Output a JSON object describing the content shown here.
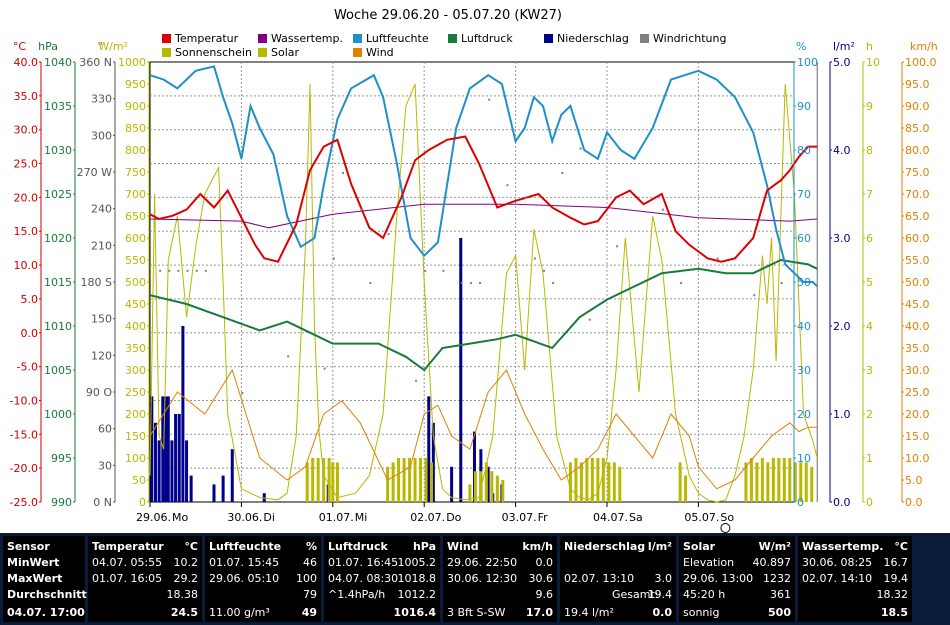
{
  "colors": {
    "temperature": "#dd0000",
    "water_temp": "#800080",
    "humidity": "#1e90c8",
    "pressure": "#1a7a3a",
    "rain": "#00008b",
    "wind_dir": "#808080",
    "sunshine": "#b8b800",
    "solar": "#b8b800",
    "wind": "#e08000",
    "axis_temp": "#cc0000",
    "axis_hpa": "#1a7a3a",
    "axis_hum": "#1e90c8",
    "axis_rain": "#00008b",
    "axis_sun": "#b8b800",
    "axis_wind": "#e08000",
    "grid": "#999999"
  },
  "chart_data": {
    "type": "line",
    "title": "Woche 29.06.20 - 05.07.20 (KW27)",
    "x_range": [
      0,
      7
    ],
    "x_ticks": [
      "29.06.",
      "30.06.",
      "01.07.",
      "02.07.",
      "03.07.",
      "04.07.",
      "05.07."
    ],
    "x_weekdays": [
      "Mo",
      "Di",
      "Mi",
      "Do",
      "Fr",
      "Sa",
      "So"
    ],
    "legend": [
      {
        "label": "Temperatur",
        "color": "#dd0000"
      },
      {
        "label": "Wassertemp.",
        "color": "#800080"
      },
      {
        "label": "Luftfeuchte",
        "color": "#1e90c8"
      },
      {
        "label": "Luftdruck",
        "color": "#1a7a3a"
      },
      {
        "label": "Niederschlag",
        "color": "#00008b"
      },
      {
        "label": "Windrichtung",
        "color": "#808080"
      },
      {
        "label": "Sonnenschein",
        "color": "#b8b800"
      },
      {
        "label": "Solar",
        "color": "#b8b800"
      },
      {
        "label": "Wind",
        "color": "#e08000"
      }
    ],
    "axes": [
      {
        "unit": "°C",
        "range": [
          -25,
          40
        ],
        "ticks": [
          "40.0",
          "35.0",
          "30.0",
          "25.0",
          "20.0",
          "15.0",
          "10.0",
          "5.0",
          "0.0",
          "-5.0",
          "-10.0",
          "-15.0",
          "-20.0",
          "-25.0"
        ],
        "color": "#cc0000"
      },
      {
        "unit": "hPa",
        "range": [
          990,
          1040
        ],
        "ticks": [
          "1040",
          "1035",
          "1030",
          "1025",
          "1020",
          "1015",
          "1010",
          "1005",
          "1000",
          "995",
          "990"
        ],
        "color": "#1a7a3a"
      },
      {
        "unit": "°",
        "range": [
          0,
          360
        ],
        "ticks": [
          "360 N",
          "330",
          "300",
          "270 W",
          "240",
          "210",
          "180 S",
          "150",
          "120",
          "90 O",
          "60",
          "30",
          "0 N"
        ],
        "color": "#555555"
      },
      {
        "unit": "W/m²",
        "range": [
          0,
          1000
        ],
        "ticks": [
          "1000",
          "950",
          "900",
          "850",
          "800",
          "750",
          "700",
          "650",
          "600",
          "550",
          "500",
          "450",
          "400",
          "350",
          "300",
          "250",
          "200",
          "150",
          "100",
          "50",
          "0"
        ],
        "color": "#b8b800"
      },
      {
        "unit": "%",
        "range": [
          0,
          100
        ],
        "ticks": [
          "100",
          "90",
          "80",
          "70",
          "60",
          "50",
          "40",
          "30",
          "20",
          "10",
          "0"
        ],
        "color": "#1e90c8"
      },
      {
        "unit": "l/m²",
        "range": [
          0,
          5
        ],
        "ticks": [
          "5.0",
          "4.0",
          "3.0",
          "2.0",
          "1.0",
          "0.0"
        ],
        "color": "#00008b"
      },
      {
        "unit": "h",
        "range": [
          0,
          10
        ],
        "ticks": [
          "10",
          "9",
          "8",
          "7",
          "6",
          "5",
          "4",
          "3",
          "2",
          "1",
          "0"
        ],
        "color": "#b8b800"
      },
      {
        "unit": "km/h",
        "range": [
          0,
          100
        ],
        "ticks": [
          "100.0",
          "95.0",
          "90.0",
          "85.0",
          "80.0",
          "75.0",
          "70.0",
          "65.0",
          "60.0",
          "55.0",
          "50.0",
          "45.0",
          "40.0",
          "35.0",
          "30.0",
          "25.0",
          "20.0",
          "15.0",
          "10.0",
          "5.0",
          "0.0"
        ],
        "color": "#e08000"
      }
    ],
    "series": [
      {
        "name": "Temperatur",
        "unit": "°C",
        "axis": 0,
        "x": [
          0,
          0.1,
          0.25,
          0.4,
          0.55,
          0.7,
          0.85,
          1.0,
          1.15,
          1.25,
          1.4,
          1.6,
          1.75,
          1.9,
          2.05,
          2.2,
          2.4,
          2.55,
          2.75,
          2.9,
          3.05,
          3.25,
          3.45,
          3.6,
          3.8,
          4.0,
          4.25,
          4.4,
          4.6,
          4.75,
          4.9,
          5.1,
          5.25,
          5.4,
          5.6,
          5.75,
          5.9,
          6.0,
          6.1,
          6.25,
          6.4,
          6.5,
          6.6,
          6.75,
          6.85,
          6.9,
          7.0,
          7.1,
          7.2,
          7.25,
          7.3
        ],
        "y": [
          17.5,
          16.8,
          17.3,
          18.2,
          20.5,
          18.5,
          21.0,
          17.0,
          13.0,
          11.0,
          10.5,
          16.0,
          24.0,
          27.5,
          28.5,
          22.0,
          15.5,
          14.0,
          20.0,
          25.5,
          27.0,
          28.5,
          29.0,
          25.0,
          18.5,
          19.5,
          20.5,
          18.5,
          17.0,
          16.0,
          16.5,
          20.0,
          21.0,
          19.0,
          20.5,
          15.0,
          13.0,
          12.0,
          11.0,
          10.5,
          11.0,
          12.5,
          14.0,
          21.0,
          22.0,
          22.5,
          24.0,
          26.0,
          27.5,
          27.5,
          27.5
        ]
      },
      {
        "name": "Wassertemp.",
        "unit": "°C",
        "axis": 0,
        "x": [
          0,
          1,
          1.3,
          2,
          3,
          4,
          5,
          6,
          7,
          7.3
        ],
        "y": [
          16.8,
          16.5,
          15.5,
          17.5,
          19.0,
          19.0,
          18.5,
          17.0,
          16.5,
          16.8
        ]
      },
      {
        "name": "Luftfeuchte",
        "unit": "%",
        "axis": 4,
        "x": [
          0,
          0.15,
          0.3,
          0.5,
          0.7,
          0.8,
          0.9,
          1.0,
          1.1,
          1.2,
          1.35,
          1.5,
          1.65,
          1.8,
          1.9,
          2.05,
          2.2,
          2.45,
          2.55,
          2.7,
          2.85,
          3.0,
          3.15,
          3.35,
          3.5,
          3.7,
          3.85,
          4.0,
          4.1,
          4.2,
          4.3,
          4.35,
          4.4,
          4.5,
          4.6,
          4.75,
          4.9,
          5.0,
          5.15,
          5.3,
          5.5,
          5.7,
          5.85,
          6.0,
          6.2,
          6.4,
          6.6,
          6.75,
          6.85,
          6.95,
          7.05,
          7.15,
          7.25,
          7.3
        ],
        "y": [
          97,
          96,
          94,
          98,
          99,
          92,
          86,
          78,
          90,
          85,
          79,
          65,
          58,
          60,
          72,
          87,
          94,
          97,
          92,
          77,
          60,
          56,
          59,
          85,
          94,
          97,
          95,
          82,
          85,
          92,
          90,
          86,
          82,
          88,
          90,
          80,
          78,
          84,
          80,
          78,
          85,
          96,
          97,
          98,
          96,
          92,
          84,
          72,
          62,
          54,
          52,
          50,
          50,
          49
        ]
      },
      {
        "name": "Luftdruck",
        "unit": "hPa",
        "axis": 1,
        "x": [
          0,
          0.4,
          0.8,
          1.2,
          1.5,
          1.8,
          2.0,
          2.2,
          2.5,
          2.8,
          3.0,
          3.2,
          3.5,
          3.8,
          4.0,
          4.4,
          4.7,
          5.0,
          5.3,
          5.6,
          6.0,
          6.3,
          6.6,
          6.9,
          7.2,
          7.3
        ],
        "y": [
          1013.5,
          1012.5,
          1011,
          1009.5,
          1010.5,
          1009,
          1008,
          1008,
          1008,
          1006.5,
          1005,
          1007.5,
          1008,
          1008.5,
          1009,
          1007.5,
          1011,
          1013,
          1014.5,
          1016,
          1016.5,
          1016,
          1016,
          1017.5,
          1017,
          1016.5
        ]
      },
      {
        "name": "Solar",
        "unit": "W/m²",
        "axis": 3,
        "x": [
          0,
          0.05,
          0.1,
          0.15,
          0.2,
          0.3,
          0.4,
          0.5,
          0.6,
          0.75,
          0.8,
          0.85,
          1.0,
          1.2,
          1.4,
          1.5,
          1.6,
          1.7,
          1.75,
          1.8,
          1.85,
          1.9,
          2.05,
          2.25,
          2.4,
          2.55,
          2.7,
          2.8,
          2.9,
          3.0,
          3.1,
          3.2,
          3.3,
          3.45,
          3.6,
          3.75,
          3.9,
          4.0,
          4.1,
          4.2,
          4.3,
          4.45,
          4.6,
          4.7,
          4.8,
          4.9,
          5.0,
          5.1,
          5.2,
          5.35,
          5.5,
          5.6,
          5.75,
          5.9,
          6.0,
          6.1,
          6.2,
          6.3,
          6.4,
          6.5,
          6.6,
          6.7,
          6.75,
          6.8,
          6.85,
          6.95,
          7.05,
          7.15,
          7.25,
          7.3
        ],
        "y": [
          60,
          700,
          150,
          120,
          550,
          650,
          420,
          580,
          700,
          760,
          500,
          200,
          30,
          10,
          5,
          20,
          150,
          580,
          950,
          400,
          160,
          60,
          10,
          20,
          60,
          200,
          650,
          900,
          950,
          500,
          150,
          30,
          10,
          5,
          10,
          150,
          520,
          560,
          300,
          620,
          520,
          150,
          30,
          10,
          5,
          20,
          100,
          300,
          600,
          250,
          650,
          550,
          200,
          60,
          20,
          5,
          0,
          5,
          60,
          150,
          300,
          560,
          450,
          600,
          320,
          950,
          700,
          200,
          140,
          100
        ]
      },
      {
        "name": "Wind",
        "unit": "km/h",
        "axis": 7,
        "x": [
          0,
          0.3,
          0.6,
          0.9,
          1.2,
          1.5,
          1.7,
          1.9,
          2.1,
          2.3,
          2.6,
          2.85,
          3.0,
          3.15,
          3.3,
          3.5,
          3.7,
          3.9,
          4.1,
          4.3,
          4.5,
          4.7,
          4.9,
          5.1,
          5.3,
          5.5,
          5.7,
          5.9,
          6.0,
          6.2,
          6.4,
          6.6,
          6.8,
          7.0,
          7.1,
          7.2,
          7.3
        ],
        "y": [
          15,
          25,
          20,
          30,
          10,
          5,
          8,
          20,
          23,
          18,
          5,
          8,
          20,
          22,
          15,
          12,
          25,
          30,
          20,
          12,
          5,
          8,
          12,
          20,
          15,
          10,
          20,
          15,
          8,
          3,
          5,
          10,
          15,
          18,
          16,
          17,
          17
        ]
      },
      {
        "name": "Niederschlag",
        "unit": "l/m²",
        "axis": 5,
        "type": "bar",
        "x": [
          0.02,
          0.06,
          0.1,
          0.14,
          0.17,
          0.2,
          0.24,
          0.28,
          0.32,
          0.36,
          0.4,
          0.45,
          0.7,
          0.8,
          0.9,
          1.25,
          1.95,
          3.05,
          3.1,
          3.3,
          3.4,
          3.55,
          3.62,
          3.7,
          3.75,
          3.85
        ],
        "y": [
          1.2,
          0.9,
          0.7,
          1.2,
          1.2,
          1.2,
          0.7,
          1.0,
          1.0,
          2.0,
          0.7,
          0.3,
          0.2,
          0.3,
          0.6,
          0.1,
          0.2,
          1.2,
          0.9,
          0.4,
          3.0,
          0.8,
          0.6,
          0.4,
          0.1,
          0.2
        ]
      },
      {
        "name": "Sonnenschein",
        "unit": "h",
        "axis": 6,
        "type": "bar",
        "x": [
          1.72,
          1.78,
          1.84,
          1.9,
          1.96,
          2.0,
          2.05,
          2.6,
          2.66,
          2.72,
          2.78,
          2.84,
          2.9,
          2.96,
          3.02,
          3.08,
          3.5,
          3.56,
          3.62,
          3.68,
          3.74,
          3.8,
          3.86,
          4.6,
          4.66,
          4.72,
          4.78,
          4.84,
          4.9,
          4.96,
          5.02,
          5.08,
          5.14,
          5.8,
          5.86,
          6.52,
          6.58,
          6.64,
          6.7,
          6.76,
          6.82,
          6.88,
          6.94,
          7.0,
          7.06,
          7.12,
          7.18,
          7.24
        ],
        "y": [
          0.9,
          1.0,
          1.0,
          1.0,
          1.0,
          0.9,
          0.9,
          0.8,
          0.9,
          1.0,
          1.0,
          1.0,
          1.0,
          1.0,
          1.0,
          0.9,
          0.4,
          0.7,
          0.7,
          0.9,
          0.7,
          0.6,
          0.5,
          0.9,
          1.0,
          0.9,
          1.0,
          1.0,
          1.0,
          1.0,
          0.9,
          0.9,
          0.8,
          0.9,
          0.6,
          0.9,
          1.0,
          0.9,
          1.0,
          0.9,
          1.0,
          1.0,
          1.0,
          1.0,
          0.9,
          0.9,
          0.9,
          0.8
        ]
      },
      {
        "name": "Windrichtung",
        "unit": "°",
        "axis": 2,
        "type": "scatter",
        "x": [
          0.1,
          0.2,
          0.3,
          0.4,
          0.5,
          0.6,
          1.0,
          1.5,
          1.9,
          2.0,
          2.1,
          2.3,
          2.4,
          2.6,
          2.9,
          3.0,
          3.2,
          3.4,
          3.5,
          3.6,
          3.7,
          3.9,
          4.1,
          4.2,
          4.3,
          4.4,
          4.5,
          4.7,
          4.8,
          5.1,
          5.6,
          5.8,
          6.2,
          6.6,
          6.9
        ],
        "y": [
          190,
          190,
          190,
          190,
          190,
          190,
          90,
          120,
          110,
          200,
          270,
          240,
          180,
          220,
          100,
          190,
          190,
          180,
          180,
          180,
          330,
          260,
          250,
          200,
          190,
          180,
          270,
          290,
          150,
          210,
          240,
          180,
          200,
          170,
          180
        ]
      }
    ]
  },
  "stats": {
    "sensor": {
      "title": "Sensor",
      "minwert": "MinWert",
      "maxwert": "MaxWert",
      "durchschnitt": "Durchschnitt",
      "current": "04.07. 17:00"
    },
    "temperature": {
      "title": "Temperatur",
      "unit": "°C",
      "min_time": "04.07. 05:55",
      "min_val": "10.2",
      "max_time": "01.07. 16:05",
      "max_val": "29.2",
      "avg": "18.38",
      "current": "24.5"
    },
    "humidity": {
      "title": "Luftfeuchte",
      "unit": "%",
      "min_time": "01.07. 15:45",
      "min_val": "46",
      "max_time": "29.06. 05:10",
      "max_val": "100",
      "avg": "79",
      "extra": "11.00 g/m³",
      "current": "49"
    },
    "pressure": {
      "title": "Luftdruck",
      "unit": "hPa",
      "min_time": "01.07. 16:45",
      "min_val": "1005.2",
      "max_time": "04.07. 08:30",
      "max_val": "1018.8",
      "trend": "^1.4hPa/h",
      "avg": "1012.2",
      "current": "1016.4"
    },
    "wind": {
      "title": "Wind",
      "unit": "km/h",
      "min_time": "29.06. 22:50",
      "min_val": "0.0",
      "max_time": "30.06. 12:30",
      "max_val": "30.6",
      "avg": "9.6",
      "extra": "3 Bft S-SW",
      "current": "17.0"
    },
    "rain": {
      "title": "Niederschlag",
      "unit": "l/m²",
      "max_time": "02.07. 13:10",
      "max_val": "3.0",
      "gesamt_label": "Gesamt:",
      "gesamt_val": "19.4",
      "extra": "19.4 l/m²",
      "current": "0.0"
    },
    "solar": {
      "title": "Solar",
      "unit": "W/m²",
      "elev_label": "Elevation",
      "elev_val": "40.897",
      "max_time": "29.06. 13:00",
      "max_val": "1232",
      "sun_time": "45:20 h",
      "avg": "361",
      "extra": "sonnig",
      "current": "500"
    },
    "water": {
      "title": "Wassertemp.",
      "unit": "°C",
      "min_time": "30.06. 08:25",
      "min_val": "16.7",
      "max_time": "02.07. 14:10",
      "max_val": "19.4",
      "avg": "18.32",
      "current": "18.5"
    }
  }
}
